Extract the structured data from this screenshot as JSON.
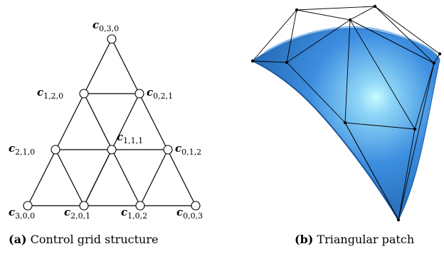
{
  "panel_a": {
    "caption_tag": "(a)",
    "caption_text": "Control grid structure",
    "labels": {
      "c030": {
        "base": "c",
        "sub": "0,3,0"
      },
      "c120": {
        "base": "c",
        "sub": "1,2,0"
      },
      "c021": {
        "base": "c",
        "sub": "0,2,1"
      },
      "c210": {
        "base": "c",
        "sub": "2,1,0"
      },
      "c111": {
        "base": "c",
        "sub": "1,1,1"
      },
      "c012": {
        "base": "c",
        "sub": "0,1,2"
      },
      "c300": {
        "base": "c",
        "sub": "3,0,0"
      },
      "c201": {
        "base": "c",
        "sub": "2,0,1"
      },
      "c102": {
        "base": "c",
        "sub": "1,0,2"
      },
      "c003": {
        "base": "c",
        "sub": "0,0,3"
      }
    }
  },
  "panel_b": {
    "caption_tag": "(b)",
    "caption_text": "Triangular patch",
    "surface_color": "#3d86d8",
    "highlight_color": "#aef3ff"
  }
}
